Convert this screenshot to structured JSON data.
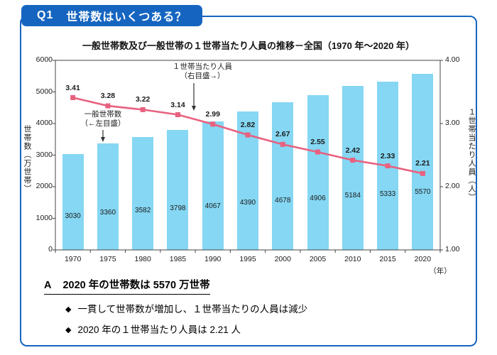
{
  "header": {
    "label": "Q1",
    "text": "世帯数はいくつある？"
  },
  "colors": {
    "accent_blue": "#1565c0",
    "bar": "#85d7f3",
    "line": "#e8617f",
    "text_dark": "#1b1b1b"
  },
  "chart_data": {
    "type": "bar+line",
    "title": "一般世帯数及び一般世帯の１世帯当たり人員の推移－全国（1970 年～2020 年）",
    "categories": [
      "1970",
      "1975",
      "1980",
      "1985",
      "1990",
      "1995",
      "2000",
      "2005",
      "2010",
      "2015",
      "2020"
    ],
    "series": [
      {
        "name": "一般世帯数",
        "type": "bar",
        "axis": "left",
        "values": [
          3030,
          3360,
          3582,
          3798,
          4067,
          4390,
          4678,
          4906,
          5184,
          5333,
          5570
        ]
      },
      {
        "name": "１世帯当たり人員",
        "type": "line",
        "axis": "right",
        "values": [
          3.41,
          3.28,
          3.22,
          3.14,
          2.99,
          2.82,
          2.67,
          2.55,
          2.42,
          2.33,
          2.21
        ]
      }
    ],
    "left_axis": {
      "label": "世帯数（万世帯）",
      "min": 0,
      "max": 6000,
      "ticks": [
        6000,
        5000,
        4000,
        3000,
        2000,
        1000,
        0
      ]
    },
    "right_axis": {
      "label": "１世帯当たり人員（人）",
      "min": 1,
      "max": 4,
      "ticks": [
        "4.00",
        "3.00",
        "2.00",
        "1.00"
      ]
    },
    "x_axis_unit": "（年）",
    "grid": "off",
    "annotations": {
      "line_series": {
        "line1": "１世帯当たり人員",
        "line2": "（右目盛→）"
      },
      "bar_series": {
        "line1": "一般世帯数",
        "line2": "（←左目盛）"
      }
    }
  },
  "answer": {
    "label": "A",
    "heading": "2020 年の世帯数は 5570 万世帯",
    "bullet_icon": "◆",
    "bullets": [
      "一貫して世帯数が増加し、１世帯当たりの人員は減少",
      "2020 年の１世帯当たり人員は 2.21 人"
    ]
  }
}
